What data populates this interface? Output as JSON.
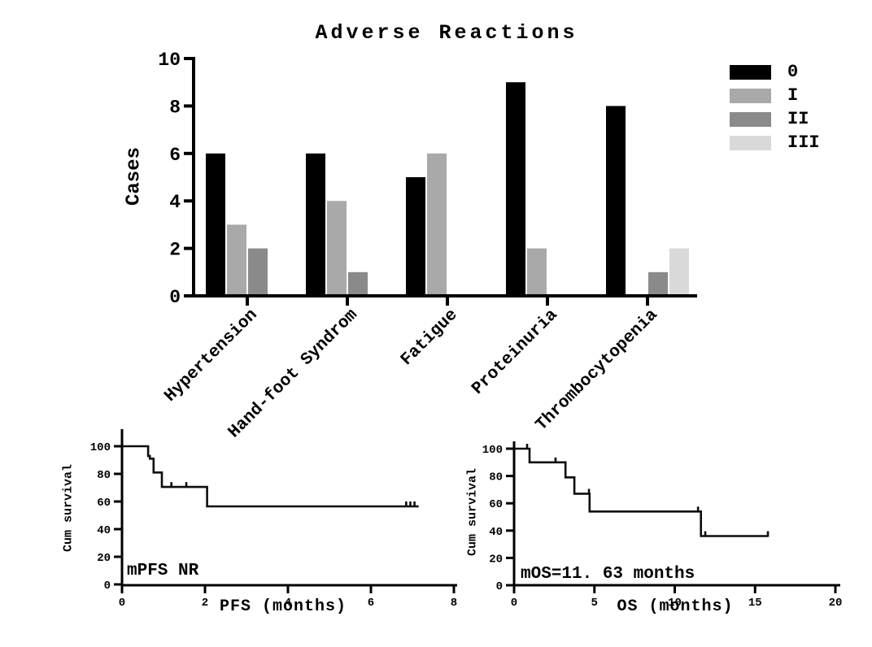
{
  "background_color": "#ffffff",
  "text_color": "#000000",
  "chart_data": [
    {
      "type": "bar",
      "title": "Adverse Reactions",
      "xlabel": "",
      "ylabel": "Cases",
      "ylim": [
        0,
        10
      ],
      "yticks": [
        0,
        2,
        4,
        6,
        8,
        10
      ],
      "grid": false,
      "legend_position": "right-outside",
      "categories": [
        "Hypertension",
        "Hand-foot Syndrom",
        "Fatigue",
        "Proteinuria",
        "Thrombocytopenia"
      ],
      "series": [
        {
          "name": "0",
          "color": "#000000",
          "values": [
            6,
            6,
            5,
            9,
            8
          ]
        },
        {
          "name": "I",
          "color": "#a9a9a9",
          "values": [
            3,
            4,
            6,
            2,
            0
          ]
        },
        {
          "name": "II",
          "color": "#8a8a8a",
          "values": [
            2,
            1,
            0,
            0,
            1
          ]
        },
        {
          "name": "III",
          "color": "#d9d9d9",
          "values": [
            0,
            0,
            0,
            0,
            2
          ]
        }
      ]
    },
    {
      "type": "line",
      "subtype": "kaplan-meier",
      "title": "",
      "xlabel": "PFS (months)",
      "ylabel": "Cum survival",
      "annotation": "mPFS NR",
      "xlim": [
        0,
        8
      ],
      "ylim": [
        0,
        100
      ],
      "xticks": [
        0,
        2,
        4,
        6,
        8
      ],
      "yticks": [
        0,
        20,
        40,
        60,
        80,
        100
      ],
      "grid": false,
      "line_color": "#0d0d0d",
      "steps": [
        [
          0,
          100
        ],
        [
          0.63,
          100
        ],
        [
          0.63,
          93
        ],
        [
          0.67,
          93
        ],
        [
          0.67,
          91
        ],
        [
          0.76,
          91
        ],
        [
          0.76,
          81
        ],
        [
          0.96,
          81
        ],
        [
          0.96,
          70.5
        ],
        [
          2.05,
          70.5
        ],
        [
          2.05,
          56.5
        ],
        [
          7.15,
          56.5
        ]
      ],
      "censor_marks": [
        [
          1.19,
          70.5
        ],
        [
          1.55,
          70.5
        ],
        [
          6.85,
          56.5
        ],
        [
          6.95,
          56.5
        ],
        [
          7.05,
          56.5
        ]
      ]
    },
    {
      "type": "line",
      "subtype": "kaplan-meier",
      "title": "",
      "xlabel": "OS (months)",
      "ylabel": "Cum survival",
      "annotation": "mOS=11. 63 months",
      "xlim": [
        0,
        20
      ],
      "ylim": [
        0,
        100
      ],
      "xticks": [
        0,
        5,
        10,
        15,
        20
      ],
      "yticks": [
        0,
        20,
        40,
        60,
        80,
        100
      ],
      "grid": false,
      "line_color": "#0d0d0d",
      "steps": [
        [
          0,
          100
        ],
        [
          0.96,
          100
        ],
        [
          0.96,
          90
        ],
        [
          3.2,
          90
        ],
        [
          3.2,
          79
        ],
        [
          3.75,
          79
        ],
        [
          3.75,
          67
        ],
        [
          4.7,
          67
        ],
        [
          4.7,
          54
        ],
        [
          11.63,
          54
        ],
        [
          11.63,
          36
        ],
        [
          15.8,
          36
        ]
      ],
      "censor_marks": [
        [
          0.81,
          100
        ],
        [
          2.58,
          90
        ],
        [
          4.66,
          67
        ],
        [
          11.45,
          54
        ],
        [
          11.9,
          36
        ],
        [
          15.8,
          36
        ]
      ]
    }
  ]
}
